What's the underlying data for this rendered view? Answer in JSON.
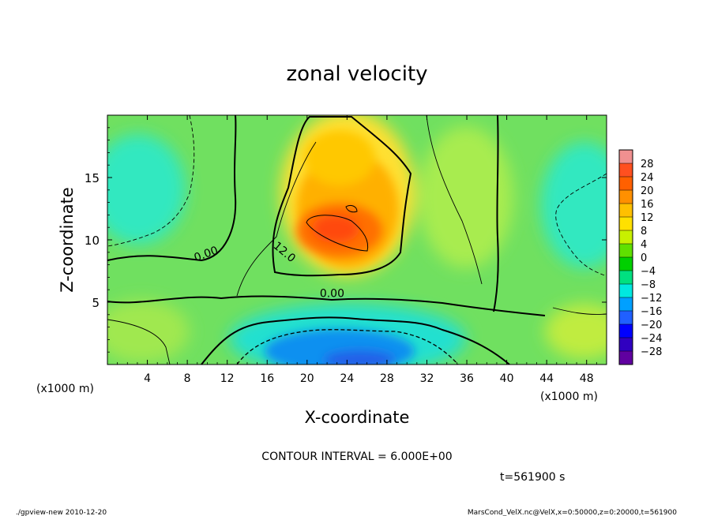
{
  "chart_data": {
    "type": "heatmap",
    "title": "zonal velocity",
    "xlabel": "X-coordinate",
    "ylabel": "Z-coordinate",
    "x_unit_left": "(x1000 m)",
    "x_unit_right": "(x1000 m)",
    "x_ticks": [
      "4",
      "8",
      "12",
      "16",
      "20",
      "24",
      "28",
      "32",
      "36",
      "40",
      "44",
      "48"
    ],
    "x_tick_values": [
      4,
      8,
      12,
      16,
      20,
      24,
      28,
      32,
      36,
      40,
      44,
      48
    ],
    "y_ticks": [
      "5",
      "10",
      "15"
    ],
    "y_tick_values": [
      5,
      10,
      15
    ],
    "xlim": [
      0,
      50
    ],
    "ylim": [
      0,
      20
    ],
    "colorbar_labels": [
      "28",
      "24",
      "20",
      "16",
      "12",
      "8",
      "4",
      "0",
      "−4",
      "−8",
      "−12",
      "−16",
      "−20",
      "−24",
      "−28"
    ],
    "colorbar_values": [
      28,
      24,
      20,
      16,
      12,
      8,
      4,
      0,
      -4,
      -8,
      -12,
      -16,
      -20,
      -24,
      -28
    ],
    "colorbar_colors": [
      "#f09090",
      "#ff5020",
      "#ff6000",
      "#ff9000",
      "#ffc000",
      "#ffe000",
      "#c8f000",
      "#60e000",
      "#00d000",
      "#00e080",
      "#00e8e0",
      "#00a0ff",
      "#2060ff",
      "#0000ff",
      "#3000c0",
      "#6000a0"
    ],
    "contour_labels": [
      "0.00",
      "12.0",
      "0.00"
    ],
    "contour_label_positions": [
      [
        10,
        8.6
      ],
      [
        17.5,
        8.8
      ],
      [
        22.5,
        5.4
      ]
    ],
    "contour_interval_text": "CONTOUR INTERVAL = 6.000E+00",
    "time_text": "t=561900 s",
    "footer_left": "./gpview-new  2010-12-20",
    "footer_right": "MarsCond_VelX.nc@VelX,x=0:50000,z=0:20000,t=561900"
  }
}
